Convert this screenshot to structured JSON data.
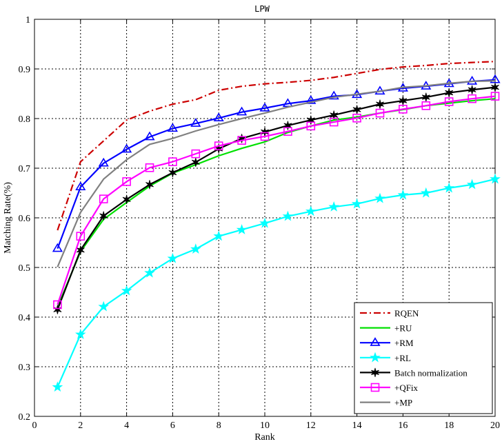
{
  "chart_data": {
    "type": "line",
    "title": "LPW",
    "xlabel": "Rank",
    "ylabel": "Matching Rate(%)",
    "xlim": [
      0,
      20
    ],
    "ylim": [
      0.2,
      1.0
    ],
    "xticks": [
      "0",
      "2",
      "4",
      "6",
      "8",
      "10",
      "12",
      "14",
      "16",
      "18",
      "20"
    ],
    "yticks": [
      "0.2",
      "0.3",
      "0.4",
      "0.5",
      "0.6",
      "0.7",
      "0.8",
      "0.9",
      "1"
    ],
    "grid": true,
    "legend_position": "bottom-right",
    "x": [
      1,
      2,
      3,
      4,
      5,
      6,
      7,
      8,
      9,
      10,
      11,
      12,
      13,
      14,
      15,
      16,
      17,
      18,
      19,
      20
    ],
    "series": [
      {
        "name": "RQEN",
        "color": "#cc0000",
        "line_style": "dashdot",
        "marker": "none",
        "values": [
          0.575,
          0.713,
          0.755,
          0.797,
          0.815,
          0.829,
          0.838,
          0.857,
          0.865,
          0.87,
          0.873,
          0.877,
          0.883,
          0.891,
          0.899,
          0.904,
          0.907,
          0.911,
          0.913,
          0.915
        ]
      },
      {
        "name": "+RU",
        "color": "#00e000",
        "line_style": "solid",
        "marker": "none",
        "values": [
          0.42,
          0.532,
          0.597,
          0.631,
          0.664,
          0.69,
          0.707,
          0.725,
          0.74,
          0.753,
          0.772,
          0.785,
          0.797,
          0.803,
          0.811,
          0.818,
          0.826,
          0.831,
          0.836,
          0.84
        ]
      },
      {
        "name": "+RM",
        "color": "#0000ff",
        "line_style": "solid",
        "marker": "triangle",
        "values": [
          0.538,
          0.662,
          0.71,
          0.738,
          0.763,
          0.78,
          0.79,
          0.801,
          0.813,
          0.821,
          0.83,
          0.836,
          0.845,
          0.848,
          0.855,
          0.861,
          0.865,
          0.87,
          0.875,
          0.878
        ]
      },
      {
        "name": "+RL",
        "color": "#00ffff",
        "line_style": "solid",
        "marker": "star",
        "values": [
          0.259,
          0.365,
          0.421,
          0.453,
          0.489,
          0.518,
          0.537,
          0.563,
          0.576,
          0.589,
          0.603,
          0.613,
          0.622,
          0.628,
          0.639,
          0.646,
          0.65,
          0.66,
          0.667,
          0.678
        ]
      },
      {
        "name": "Batch normalization",
        "color": "#000000",
        "line_style": "solid",
        "marker": "asterisk",
        "values": [
          0.415,
          0.535,
          0.604,
          0.637,
          0.667,
          0.691,
          0.712,
          0.739,
          0.76,
          0.773,
          0.786,
          0.797,
          0.807,
          0.818,
          0.829,
          0.836,
          0.843,
          0.852,
          0.858,
          0.863
        ]
      },
      {
        "name": "+QFix",
        "color": "#ff00ff",
        "line_style": "solid",
        "marker": "square",
        "values": [
          0.425,
          0.563,
          0.638,
          0.673,
          0.701,
          0.713,
          0.729,
          0.745,
          0.756,
          0.764,
          0.774,
          0.785,
          0.793,
          0.801,
          0.811,
          0.819,
          0.826,
          0.834,
          0.84,
          0.845
        ]
      },
      {
        "name": "+MP",
        "color": "#808080",
        "line_style": "solid",
        "marker": "none",
        "values": [
          0.501,
          0.611,
          0.678,
          0.717,
          0.748,
          0.76,
          0.775,
          0.788,
          0.8,
          0.811,
          0.823,
          0.833,
          0.843,
          0.849,
          0.855,
          0.863,
          0.866,
          0.871,
          0.875,
          0.876
        ]
      }
    ]
  }
}
